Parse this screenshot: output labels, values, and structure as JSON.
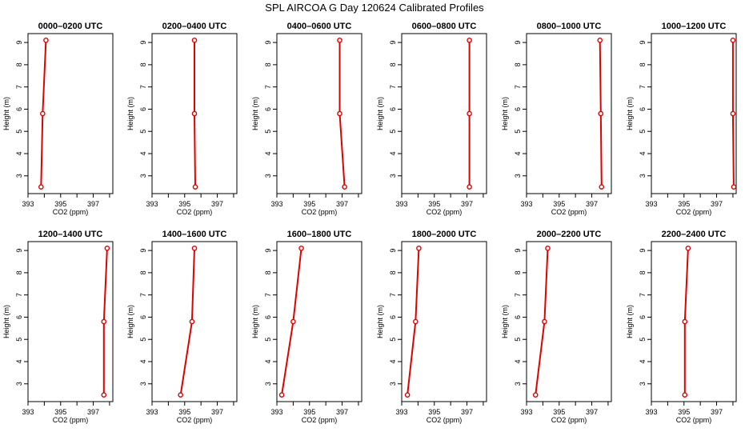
{
  "figure": {
    "title": "SPL AIRCOA G  Day 120624  Calibrated Profiles"
  },
  "colors": {
    "series": "#e00000",
    "axis": "#000000",
    "background": "#ffffff"
  },
  "chart_data": [
    {
      "type": "line",
      "title": "0000–0200 UTC",
      "xlabel": "CO2 (ppm)",
      "ylabel": "Height (m)",
      "xlim": [
        393,
        398.2
      ],
      "ylim": [
        2.2,
        9.4
      ],
      "xticks": [
        "393",
        "395",
        "397"
      ],
      "yticks": [
        "3",
        "4",
        "5",
        "6",
        "7",
        "8",
        "9"
      ],
      "points": [
        {
          "x": 394.1,
          "y": 9.1
        },
        {
          "x": 393.9,
          "y": 5.8
        },
        {
          "x": 393.8,
          "y": 2.5
        }
      ]
    },
    {
      "type": "line",
      "title": "0200–0400 UTC",
      "xlabel": "CO2 (ppm)",
      "ylabel": "Height (m)",
      "xlim": [
        393,
        398.2
      ],
      "ylim": [
        2.2,
        9.4
      ],
      "xticks": [
        "393",
        "395",
        "397"
      ],
      "yticks": [
        "3",
        "4",
        "5",
        "6",
        "7",
        "8",
        "9"
      ],
      "points": [
        {
          "x": 395.6,
          "y": 9.1
        },
        {
          "x": 395.6,
          "y": 5.8
        },
        {
          "x": 395.65,
          "y": 2.5
        }
      ]
    },
    {
      "type": "line",
      "title": "0400–0600 UTC",
      "xlabel": "CO2 (ppm)",
      "ylabel": "Height (m)",
      "xlim": [
        393,
        398.2
      ],
      "ylim": [
        2.2,
        9.4
      ],
      "xticks": [
        "393",
        "395",
        "397"
      ],
      "yticks": [
        "3",
        "4",
        "5",
        "6",
        "7",
        "8",
        "9"
      ],
      "points": [
        {
          "x": 396.85,
          "y": 9.1
        },
        {
          "x": 396.85,
          "y": 5.8
        },
        {
          "x": 397.15,
          "y": 2.5
        }
      ]
    },
    {
      "type": "line",
      "title": "0600–0800 UTC",
      "xlabel": "CO2 (ppm)",
      "ylabel": "Height (m)",
      "xlim": [
        393,
        398.2
      ],
      "ylim": [
        2.2,
        9.4
      ],
      "xticks": [
        "393",
        "395",
        "397"
      ],
      "yticks": [
        "3",
        "4",
        "5",
        "6",
        "7",
        "8",
        "9"
      ],
      "points": [
        {
          "x": 397.15,
          "y": 9.1
        },
        {
          "x": 397.15,
          "y": 5.8
        },
        {
          "x": 397.15,
          "y": 2.5
        }
      ]
    },
    {
      "type": "line",
      "title": "0800–1000 UTC",
      "xlabel": "CO2 (ppm)",
      "ylabel": "Height (m)",
      "xlim": [
        393,
        398.2
      ],
      "ylim": [
        2.2,
        9.4
      ],
      "xticks": [
        "393",
        "395",
        "397"
      ],
      "yticks": [
        "3",
        "4",
        "5",
        "6",
        "7",
        "8",
        "9"
      ],
      "points": [
        {
          "x": 397.5,
          "y": 9.1
        },
        {
          "x": 397.55,
          "y": 5.8
        },
        {
          "x": 397.6,
          "y": 2.5
        }
      ]
    },
    {
      "type": "line",
      "title": "1000–1200 UTC",
      "xlabel": "CO2 (ppm)",
      "ylabel": "Height (m)",
      "xlim": [
        393,
        398.2
      ],
      "ylim": [
        2.2,
        9.4
      ],
      "xticks": [
        "393",
        "395",
        "397"
      ],
      "yticks": [
        "3",
        "4",
        "5",
        "6",
        "7",
        "8",
        "9"
      ],
      "points": [
        {
          "x": 398.0,
          "y": 9.1
        },
        {
          "x": 398.0,
          "y": 5.8
        },
        {
          "x": 398.05,
          "y": 2.5
        }
      ]
    },
    {
      "type": "line",
      "title": "1200–1400 UTC",
      "xlabel": "CO2 (ppm)",
      "ylabel": "Height (m)",
      "xlim": [
        393,
        398.2
      ],
      "ylim": [
        2.2,
        9.4
      ],
      "xticks": [
        "393",
        "395",
        "397"
      ],
      "yticks": [
        "3",
        "4",
        "5",
        "6",
        "7",
        "8",
        "9"
      ],
      "points": [
        {
          "x": 397.85,
          "y": 9.1
        },
        {
          "x": 397.65,
          "y": 5.8
        },
        {
          "x": 397.65,
          "y": 2.5
        }
      ]
    },
    {
      "type": "line",
      "title": "1400–1600 UTC",
      "xlabel": "CO2 (ppm)",
      "ylabel": "Height (m)",
      "xlim": [
        393,
        398.2
      ],
      "ylim": [
        2.2,
        9.4
      ],
      "xticks": [
        "393",
        "395",
        "397"
      ],
      "yticks": [
        "3",
        "4",
        "5",
        "6",
        "7",
        "8",
        "9"
      ],
      "points": [
        {
          "x": 395.6,
          "y": 9.1
        },
        {
          "x": 395.45,
          "y": 5.8
        },
        {
          "x": 394.75,
          "y": 2.5
        }
      ]
    },
    {
      "type": "line",
      "title": "1600–1800 UTC",
      "xlabel": "CO2 (ppm)",
      "ylabel": "Height (m)",
      "xlim": [
        393,
        398.2
      ],
      "ylim": [
        2.2,
        9.4
      ],
      "xticks": [
        "393",
        "395",
        "397"
      ],
      "yticks": [
        "3",
        "4",
        "5",
        "6",
        "7",
        "8",
        "9"
      ],
      "points": [
        {
          "x": 394.5,
          "y": 9.1
        },
        {
          "x": 394.0,
          "y": 5.8
        },
        {
          "x": 393.3,
          "y": 2.5
        }
      ]
    },
    {
      "type": "line",
      "title": "1800–2000 UTC",
      "xlabel": "CO2 (ppm)",
      "ylabel": "Height (m)",
      "xlim": [
        393,
        398.2
      ],
      "ylim": [
        2.2,
        9.4
      ],
      "xticks": [
        "393",
        "395",
        "397"
      ],
      "yticks": [
        "3",
        "4",
        "5",
        "6",
        "7",
        "8",
        "9"
      ],
      "points": [
        {
          "x": 394.05,
          "y": 9.1
        },
        {
          "x": 393.85,
          "y": 5.8
        },
        {
          "x": 393.35,
          "y": 2.5
        }
      ]
    },
    {
      "type": "line",
      "title": "2000–2200 UTC",
      "xlabel": "CO2 (ppm)",
      "ylabel": "Height (m)",
      "xlim": [
        393,
        398.2
      ],
      "ylim": [
        2.2,
        9.4
      ],
      "xticks": [
        "393",
        "395",
        "397"
      ],
      "yticks": [
        "3",
        "4",
        "5",
        "6",
        "7",
        "8",
        "9"
      ],
      "points": [
        {
          "x": 394.3,
          "y": 9.1
        },
        {
          "x": 394.1,
          "y": 5.8
        },
        {
          "x": 393.55,
          "y": 2.5
        }
      ]
    },
    {
      "type": "line",
      "title": "2200–2400 UTC",
      "xlabel": "CO2 (ppm)",
      "ylabel": "Height (m)",
      "xlim": [
        393,
        398.2
      ],
      "ylim": [
        2.2,
        9.4
      ],
      "xticks": [
        "393",
        "395",
        "397"
      ],
      "yticks": [
        "3",
        "4",
        "5",
        "6",
        "7",
        "8",
        "9"
      ],
      "points": [
        {
          "x": 395.25,
          "y": 9.1
        },
        {
          "x": 395.05,
          "y": 5.8
        },
        {
          "x": 395.05,
          "y": 2.5
        }
      ]
    }
  ]
}
